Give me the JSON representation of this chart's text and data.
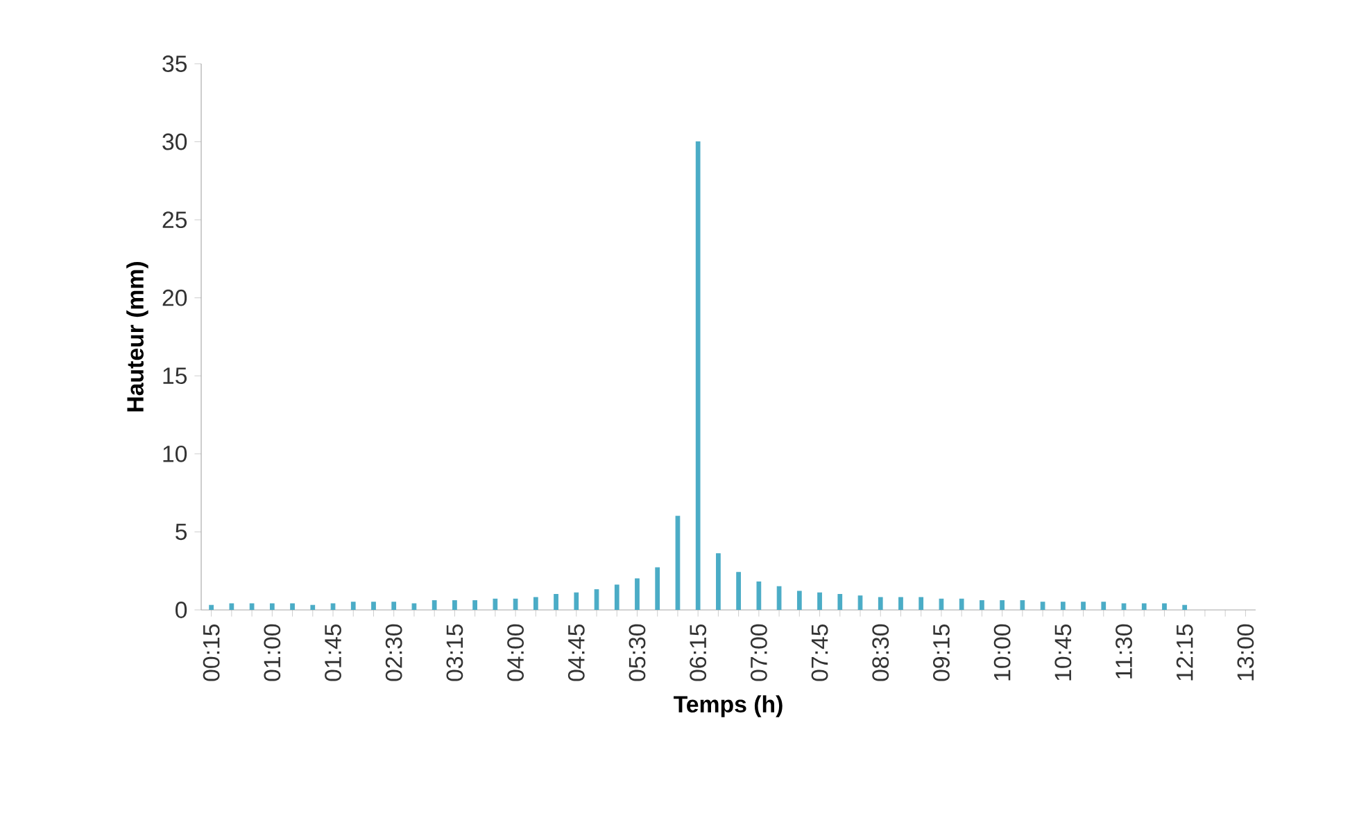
{
  "chart_data": {
    "type": "bar",
    "xlabel": "Temps (h)",
    "ylabel": "Hauteur (mm)",
    "categories": [
      "00:15",
      null,
      null,
      "01:00",
      null,
      null,
      "01:45",
      null,
      null,
      "02:30",
      null,
      null,
      "03:15",
      null,
      null,
      "04:00",
      null,
      null,
      "04:45",
      null,
      null,
      "05:30",
      null,
      null,
      "06:15",
      null,
      null,
      "07:00",
      null,
      null,
      "07:45",
      null,
      null,
      "08:30",
      null,
      null,
      "09:15",
      null,
      null,
      "10:00",
      null,
      null,
      "10:45",
      null,
      null,
      "11:30",
      null,
      null,
      "12:15",
      null,
      null,
      "13:00"
    ],
    "values": [
      0.3,
      0.4,
      0.4,
      0.4,
      0.4,
      0.3,
      0.4,
      0.5,
      0.5,
      0.5,
      0.4,
      0.6,
      0.6,
      0.6,
      0.7,
      0.7,
      0.8,
      1.0,
      1.1,
      1.3,
      1.6,
      2.0,
      2.7,
      6.0,
      30,
      3.6,
      2.4,
      1.8,
      1.5,
      1.2,
      1.1,
      1.0,
      0.9,
      0.8,
      0.8,
      0.8,
      0.7,
      0.7,
      0.6,
      0.6,
      0.6,
      0.5,
      0.5,
      0.5,
      0.5,
      0.4,
      0.4,
      0.4,
      0.3,
      null,
      null,
      null
    ],
    "color": "#4bacc6",
    "ylim": [
      0,
      35
    ],
    "yticks": [
      0,
      5,
      10,
      15,
      20,
      25,
      30,
      35
    ],
    "grid": false
  }
}
